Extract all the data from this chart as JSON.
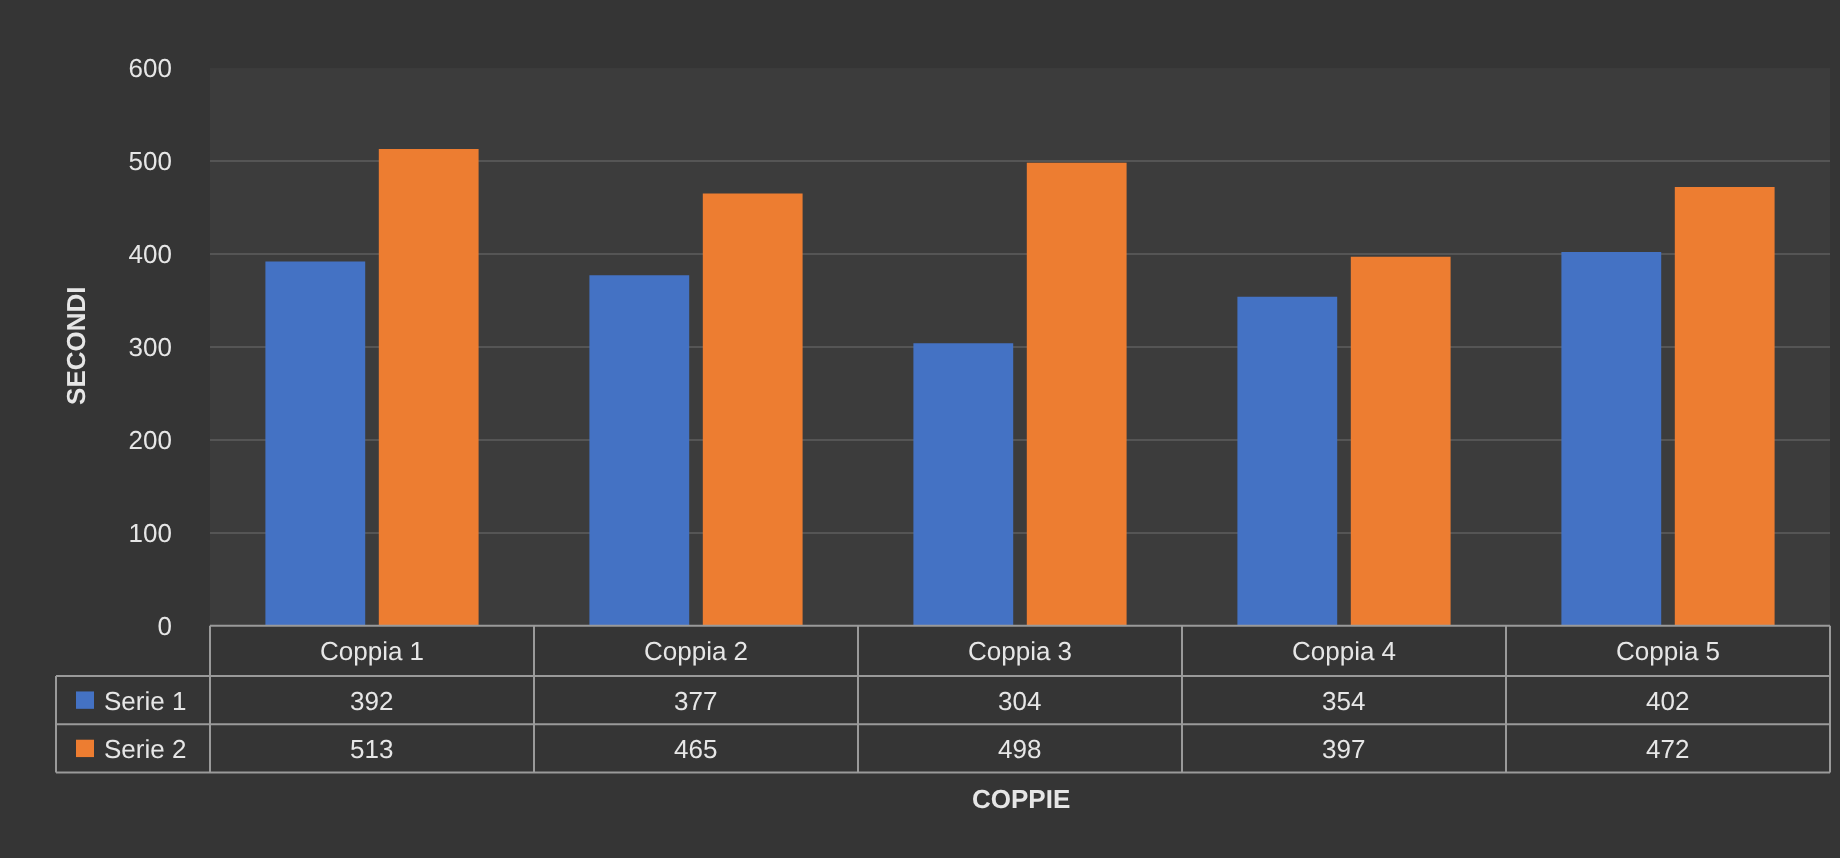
{
  "chart_data": {
    "type": "bar",
    "xlabel": "COPPIE",
    "ylabel": "SECONDI",
    "categories": [
      "Coppia 1",
      "Coppia 2",
      "Coppia 3",
      "Coppia 4",
      "Coppia 5"
    ],
    "series": [
      {
        "name": "Serie 1",
        "color": "#4472c4",
        "values": [
          392,
          377,
          304,
          354,
          402
        ]
      },
      {
        "name": "Serie 2",
        "color": "#ed7d31",
        "values": [
          513,
          465,
          498,
          397,
          472
        ]
      }
    ],
    "ylim": [
      0,
      600
    ],
    "yticks": [
      0,
      100,
      200,
      300,
      400,
      500,
      600
    ],
    "grid": "y",
    "legend": "bottom",
    "data_labels": true
  }
}
